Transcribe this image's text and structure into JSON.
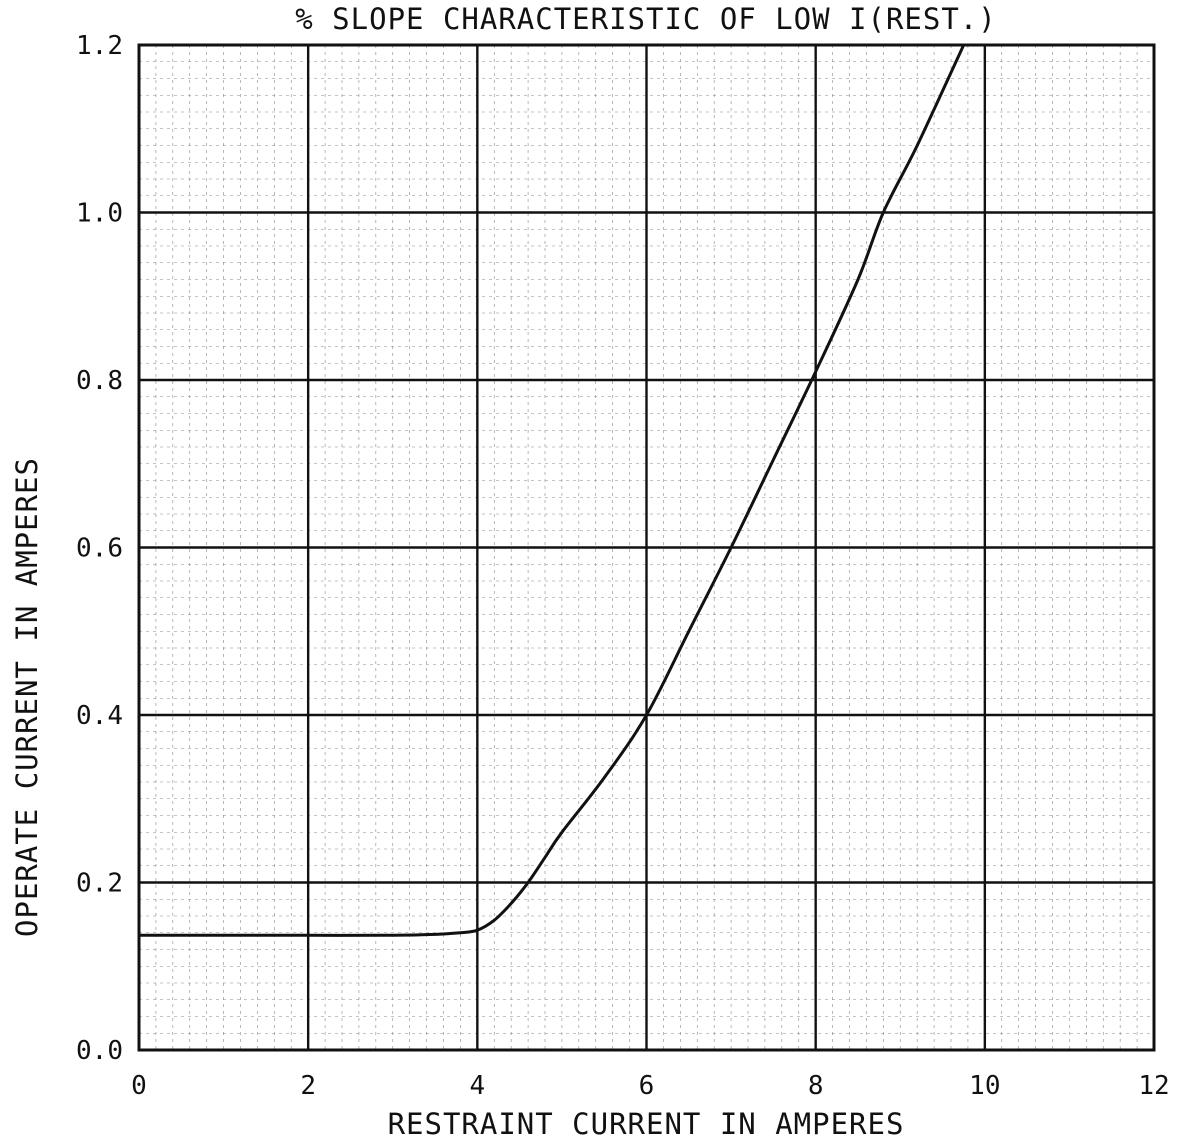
{
  "chart_data": {
    "type": "line",
    "title": "% SLOPE CHARACTERISTIC OF LOW I(REST.)",
    "xlabel": "RESTRAINT CURRENT IN AMPERES",
    "ylabel": "OPERATE CURRENT IN AMPERES",
    "xlim": [
      0,
      12
    ],
    "ylim": [
      0,
      1.2
    ],
    "x_ticks": [
      "0",
      "2",
      "4",
      "6",
      "8",
      "10",
      "12"
    ],
    "y_ticks": [
      "0.0",
      "0.2",
      "0.4",
      "0.6",
      "0.8",
      "1.0",
      "1.2"
    ],
    "grid": true,
    "minor_grid": true,
    "legend": "none",
    "series": [
      {
        "x": [
          0,
          1,
          2,
          3,
          3.5,
          3.8,
          4.0,
          4.2,
          4.4,
          4.6,
          4.8,
          5.0,
          5.5,
          6.0,
          6.5,
          7.0,
          7.5,
          8.0,
          8.5,
          8.8,
          9.2,
          9.75
        ],
        "y": [
          0.137,
          0.137,
          0.137,
          0.137,
          0.138,
          0.14,
          0.143,
          0.155,
          0.175,
          0.2,
          0.23,
          0.26,
          0.325,
          0.4,
          0.5,
          0.6,
          0.705,
          0.81,
          0.92,
          1.0,
          1.08,
          1.2
        ]
      }
    ],
    "colors": {
      "line": "#111111",
      "major_grid": "#111111",
      "minor_grid": "#888888",
      "background": "#ffffff"
    }
  }
}
